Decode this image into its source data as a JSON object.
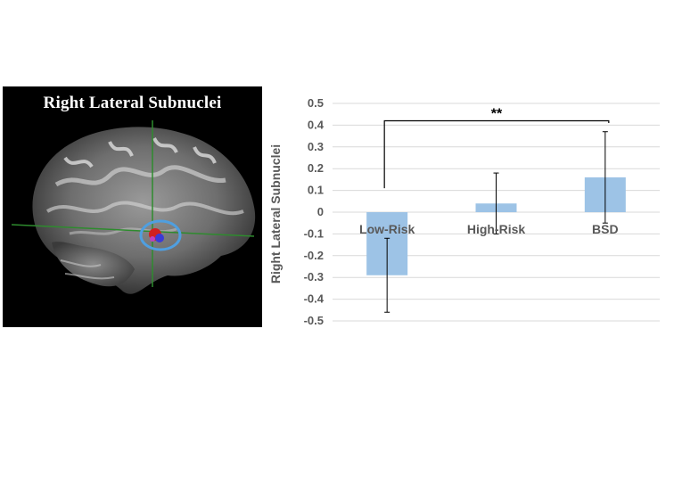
{
  "figure": {
    "image_title": "Right Lateral Subnuclei"
  },
  "colors": {
    "bar_fill": "#9dc3e6",
    "axis_text": "#595959",
    "gridline": "#d9d9d9",
    "roi_ring": "#4f9fe0",
    "crosshair": "#2e8b2e"
  },
  "chart_data": {
    "type": "bar",
    "categories": [
      "Low-Risk",
      "High-Risk",
      "BSD"
    ],
    "values": [
      -0.29,
      0.04,
      0.16
    ],
    "error": [
      {
        "low": -0.46,
        "high": -0.12
      },
      {
        "low": -0.1,
        "high": 0.18
      },
      {
        "low": -0.05,
        "high": 0.37
      }
    ],
    "ylabel": "Right Lateral Subnuclei",
    "ylim": [
      -0.5,
      0.5
    ],
    "yticks": [
      0.5,
      0.4,
      0.3,
      0.2,
      0.1,
      0,
      -0.1,
      -0.2,
      -0.3,
      -0.4,
      -0.5
    ],
    "ytick_labels": [
      "0.5",
      "0.4",
      "0.3",
      "0.2",
      "0.1",
      "0",
      "-0.1",
      "-0.2",
      "-0.3",
      "-0.4",
      "-0.5"
    ],
    "grid": true,
    "annotation": {
      "text": "**",
      "from_category": 0,
      "to_category": 2,
      "level": 0.42,
      "left_drop_to": 0.11,
      "right_drop_to": 0.41
    }
  }
}
